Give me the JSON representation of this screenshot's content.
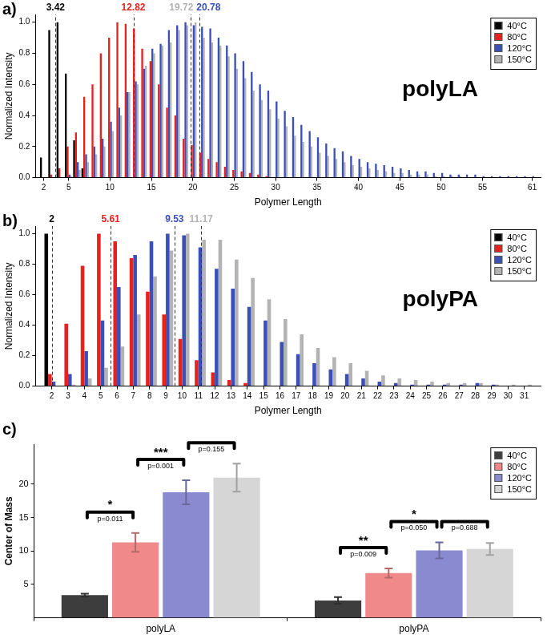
{
  "chart_data": [
    {
      "type": "bar",
      "panel_label": "a)",
      "title": "polyLA",
      "x_label": "Polymer Length",
      "y_label": "Normalized Intensity",
      "x": [
        2,
        3,
        4,
        5,
        6,
        7,
        8,
        9,
        10,
        11,
        12,
        13,
        14,
        15,
        16,
        17,
        18,
        19,
        20,
        21,
        22,
        23,
        24,
        25,
        26,
        27,
        28,
        29,
        30,
        31,
        32,
        33,
        34,
        35,
        36,
        37,
        38,
        39,
        40,
        41,
        42,
        43,
        44,
        45,
        46,
        47,
        48,
        49,
        50,
        51,
        52,
        53,
        54,
        55,
        56,
        57,
        58,
        59,
        60,
        61
      ],
      "xlim": [
        1,
        62
      ],
      "xticks": [
        2,
        5,
        10,
        15,
        20,
        25,
        30,
        35,
        40,
        45,
        50,
        55,
        61
      ],
      "ylim": [
        0,
        1.05
      ],
      "yticks": [
        {
          "value": 0,
          "label": "0.0"
        },
        {
          "value": 0.2,
          "label": "0.2"
        },
        {
          "value": 0.4,
          "label": "0.4"
        },
        {
          "value": 0.6,
          "label": "0.6"
        },
        {
          "value": 0.8,
          "label": "0.8"
        },
        {
          "value": 1,
          "label": "1.0"
        }
      ],
      "grid": false,
      "legend": "upper right",
      "series": [
        {
          "name": "40°C",
          "color": "#000000",
          "center_of_mass": 3.42,
          "values": [
            0.13,
            0.95,
            1.0,
            0.67,
            0.24,
            0.06,
            0,
            0,
            0,
            0,
            0,
            0,
            0,
            0,
            0,
            0,
            0,
            0,
            0,
            0,
            0,
            0,
            0,
            0,
            0,
            0,
            0,
            0,
            0,
            0,
            0,
            0,
            0,
            0,
            0,
            0,
            0,
            0,
            0,
            0,
            0,
            0,
            0,
            0,
            0,
            0,
            0,
            0,
            0,
            0,
            0,
            0,
            0,
            0,
            0,
            0,
            0,
            0,
            0,
            0
          ]
        },
        {
          "name": "80°C",
          "color": "#e8211d",
          "center_of_mass": 12.82,
          "values": [
            0,
            0.02,
            0.06,
            0.2,
            0.29,
            0.52,
            0.6,
            0.8,
            0.9,
            1.0,
            0.99,
            0.96,
            0.83,
            0.75,
            0.6,
            0.45,
            0.4,
            0.25,
            0.21,
            0.16,
            0.12,
            0.1,
            0.07,
            0.05,
            0.04,
            0.03,
            0.02,
            0.01,
            0,
            0,
            0,
            0,
            0,
            0,
            0,
            0,
            0,
            0,
            0,
            0,
            0,
            0,
            0,
            0,
            0,
            0,
            0,
            0,
            0,
            0,
            0,
            0,
            0,
            0,
            0,
            0,
            0,
            0,
            0,
            0
          ]
        },
        {
          "name": "120°C",
          "color": "#3a4fb8",
          "center_of_mass": 20.78,
          "values": [
            0,
            0,
            0,
            0.02,
            0.1,
            0.15,
            0.2,
            0.25,
            0.36,
            0.45,
            0.55,
            0.62,
            0.7,
            0.83,
            0.86,
            0.95,
            0.98,
            1.0,
            0.98,
            0.97,
            0.96,
            0.9,
            0.85,
            0.8,
            0.75,
            0.68,
            0.6,
            0.56,
            0.49,
            0.43,
            0.39,
            0.34,
            0.3,
            0.26,
            0.22,
            0.19,
            0.17,
            0.14,
            0.12,
            0.1,
            0.09,
            0.08,
            0.07,
            0.06,
            0.05,
            0.04,
            0.04,
            0.03,
            0.03,
            0.02,
            0.02,
            0.02,
            0.02,
            0.01,
            0.01,
            0.01,
            0.01,
            0.01,
            0.01,
            0.01
          ]
        },
        {
          "name": "150°C",
          "color": "#b3b3b3",
          "center_of_mass": 19.72,
          "values": [
            0,
            0,
            0,
            0.01,
            0.05,
            0.1,
            0.15,
            0.2,
            0.3,
            0.4,
            0.55,
            0.6,
            0.72,
            0.8,
            0.85,
            0.87,
            0.95,
            0.98,
            1.0,
            0.9,
            0.87,
            0.85,
            0.78,
            0.7,
            0.64,
            0.56,
            0.5,
            0.44,
            0.38,
            0.33,
            0.27,
            0.23,
            0.2,
            0.16,
            0.14,
            0.12,
            0.1,
            0.08,
            0.07,
            0.06,
            0.05,
            0.04,
            0.03,
            0.03,
            0.02,
            0.02,
            0.02,
            0.01,
            0.01,
            0.01,
            0.01,
            0,
            0,
            0,
            0,
            0,
            0,
            0,
            0,
            0
          ]
        }
      ]
    },
    {
      "type": "bar",
      "panel_label": "b)",
      "title": "polyPA",
      "x_label": "Polymer Length",
      "y_label": "Normalized Intensity",
      "x": [
        2,
        3,
        4,
        5,
        6,
        7,
        8,
        9,
        10,
        11,
        12,
        13,
        14,
        15,
        16,
        17,
        18,
        19,
        20,
        21,
        22,
        23,
        24,
        25,
        26,
        27,
        28,
        29,
        30,
        31
      ],
      "xlim": [
        1,
        32
      ],
      "xticks": [
        2,
        3,
        4,
        5,
        6,
        7,
        8,
        9,
        10,
        11,
        12,
        13,
        14,
        15,
        16,
        17,
        18,
        19,
        20,
        21,
        22,
        23,
        24,
        25,
        26,
        27,
        28,
        29,
        30,
        31
      ],
      "ylim": [
        0,
        1.05
      ],
      "yticks": [
        {
          "value": 0,
          "label": "0.0"
        },
        {
          "value": 0.2,
          "label": "0.2"
        },
        {
          "value": 0.4,
          "label": "0.4"
        },
        {
          "value": 0.6,
          "label": "0.6"
        },
        {
          "value": 0.8,
          "label": "0.8"
        },
        {
          "value": 1,
          "label": "1.0"
        }
      ],
      "grid": false,
      "legend": "upper right",
      "series": [
        {
          "name": "40°C",
          "color": "#000000",
          "center_of_mass": 2,
          "values": [
            1.0,
            0,
            0,
            0,
            0,
            0,
            0,
            0,
            0,
            0,
            0,
            0,
            0,
            0,
            0,
            0,
            0,
            0,
            0,
            0,
            0,
            0,
            0,
            0,
            0,
            0,
            0,
            0,
            0,
            0
          ]
        },
        {
          "name": "80°C",
          "color": "#e8211d",
          "center_of_mass": 5.61,
          "values": [
            0.08,
            0.41,
            0.79,
            1.0,
            0.95,
            0.84,
            0.62,
            0.47,
            0.31,
            0.17,
            0.09,
            0.04,
            0.02,
            0,
            0,
            0,
            0,
            0,
            0,
            0,
            0,
            0,
            0,
            0,
            0,
            0,
            0,
            0,
            0,
            0
          ]
        },
        {
          "name": "120°C",
          "color": "#3a4fb8",
          "center_of_mass": 9.53,
          "values": [
            0.03,
            0.08,
            0.23,
            0.43,
            0.65,
            0.86,
            0.95,
            1.0,
            0.99,
            0.91,
            0.77,
            0.64,
            0.52,
            0.43,
            0.29,
            0.21,
            0.15,
            0.11,
            0.08,
            0.05,
            0.03,
            0.02,
            0.01,
            0.01,
            0.01,
            0.01,
            0.02,
            0.01,
            0,
            0
          ]
        },
        {
          "name": "150°C",
          "color": "#b3b3b3",
          "center_of_mass": 11.17,
          "values": [
            0,
            0.01,
            0.05,
            0.12,
            0.26,
            0.47,
            0.72,
            0.89,
            1.0,
            0.96,
            0.96,
            0.83,
            0.71,
            0.57,
            0.44,
            0.34,
            0.25,
            0.19,
            0.15,
            0.1,
            0.07,
            0.05,
            0.04,
            0.03,
            0.02,
            0.02,
            0.02,
            0.01,
            0.01,
            0.01
          ]
        }
      ]
    },
    {
      "type": "bar",
      "panel_label": "c)",
      "y_label": "Center of Mass",
      "categories": [
        "polyLA",
        "polyPA"
      ],
      "ylim": [
        0,
        26
      ],
      "yticks": [
        5,
        10,
        15,
        20
      ],
      "grid": false,
      "legend": "upper right",
      "series": [
        {
          "name": "40°C",
          "color": "#3d3d3d",
          "values": [
            3.4,
            2.6
          ],
          "errors": [
            0.2,
            0.5
          ]
        },
        {
          "name": "80°C",
          "color": "#f08a8a",
          "values": [
            11.3,
            6.7
          ],
          "errors": [
            1.4,
            0.7
          ]
        },
        {
          "name": "120°C",
          "color": "#8a8ad0",
          "values": [
            18.8,
            10.1
          ],
          "errors": [
            1.8,
            1.2
          ]
        },
        {
          "name": "150°C",
          "color": "#d6d6d6",
          "values": [
            21.0,
            10.3
          ],
          "errors": [
            2.1,
            0.9
          ]
        }
      ],
      "comparisons": [
        {
          "category": "polyLA",
          "from": "40°C",
          "to": "80°C",
          "stars": "*",
          "p_label": "p=0.011"
        },
        {
          "category": "polyLA",
          "from": "80°C",
          "to": "120°C",
          "stars": "***",
          "p_label": "p=0.001"
        },
        {
          "category": "polyLA",
          "from": "120°C",
          "to": "150°C",
          "p_label": "p=0.155"
        },
        {
          "category": "polyPA",
          "from": "40°C",
          "to": "80°C",
          "stars": "**",
          "p_label": "p=0.009"
        },
        {
          "category": "polyPA",
          "from": "80°C",
          "to": "120°C",
          "stars": "*",
          "p_label": "p=0.050"
        },
        {
          "category": "polyPA",
          "from": "120°C",
          "to": "150°C",
          "p_label": "p=0.688"
        }
      ]
    }
  ]
}
